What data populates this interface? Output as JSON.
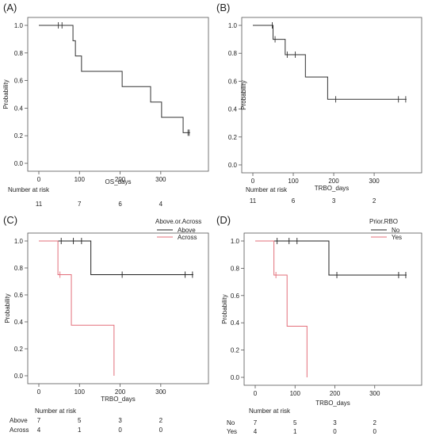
{
  "chart_data": [
    {
      "panel": "(A)",
      "type": "line",
      "step": "survival",
      "xlabel": "OS_days",
      "ylabel": "Probability",
      "xlim": [
        0,
        390
      ],
      "ylim": [
        0,
        1
      ],
      "xticks": [
        0,
        100,
        200,
        300
      ],
      "yticks": [
        0.0,
        0.2,
        0.4,
        0.6,
        0.8,
        1.0
      ],
      "tick_labels_y": [
        "0.0",
        "0.2",
        "0.4",
        "0.6",
        "0.8",
        "1.0"
      ],
      "legend_title": "",
      "series": [
        {
          "name": "",
          "color": "#333333",
          "steps": [
            [
              0,
              1.0
            ],
            [
              84,
              0.889
            ],
            [
              90,
              0.778
            ],
            [
              105,
              0.667
            ],
            [
              205,
              0.556
            ],
            [
              275,
              0.444
            ],
            [
              302,
              0.333
            ],
            [
              355,
              0.222
            ],
            [
              372,
              0.222
            ]
          ],
          "censored": [
            [
              48,
              1.0
            ],
            [
              57,
              1.0
            ],
            [
              367,
              0.222
            ],
            [
              370,
              0.222
            ]
          ]
        }
      ],
      "risk_table": {
        "title": "Number at risk",
        "times": [
          0,
          100,
          200,
          300
        ],
        "rows": [
          {
            "label": "",
            "values": [
              "11",
              "7",
              "6",
              "4"
            ]
          }
        ]
      }
    },
    {
      "panel": "(B)",
      "type": "line",
      "step": "survival",
      "xlabel": "TRBO_days",
      "ylabel": "Probability",
      "xlim": [
        0,
        390
      ],
      "ylim": [
        0,
        1
      ],
      "xticks": [
        0,
        100,
        200,
        300
      ],
      "yticks": [
        0.0,
        0.2,
        0.4,
        0.6,
        0.8,
        1.0
      ],
      "tick_labels_y": [
        "0.0",
        "0.2",
        "0.4",
        "0.6",
        "0.8",
        "1.0"
      ],
      "legend_title": "",
      "series": [
        {
          "name": "",
          "color": "#333333",
          "steps": [
            [
              0,
              1.0
            ],
            [
              50,
              0.9
            ],
            [
              80,
              0.79
            ],
            [
              130,
              0.63
            ],
            [
              185,
              0.47
            ],
            [
              380,
              0.47
            ]
          ],
          "censored": [
            [
              48,
              1.0
            ],
            [
              55,
              0.9
            ],
            [
              85,
              0.79
            ],
            [
              105,
              0.79
            ],
            [
              205,
              0.47
            ],
            [
              360,
              0.47
            ],
            [
              378,
              0.47
            ]
          ]
        }
      ],
      "risk_table": {
        "title": "Number at risk",
        "times": [
          0,
          100,
          200,
          300
        ],
        "rows": [
          {
            "label": "",
            "values": [
              "11",
              "6",
              "3",
              "2"
            ]
          }
        ]
      }
    },
    {
      "panel": "(C)",
      "type": "line",
      "step": "survival",
      "xlabel": "TRBO_days",
      "ylabel": "Probability",
      "xlim": [
        0,
        390
      ],
      "ylim": [
        0,
        1
      ],
      "xticks": [
        0,
        100,
        200,
        300
      ],
      "yticks": [
        0.0,
        0.2,
        0.4,
        0.6,
        0.8,
        1.0
      ],
      "tick_labels_y": [
        "0.0",
        "0.2",
        "0.4",
        "0.6",
        "0.8",
        "1.0"
      ],
      "legend_title": "Above.or.Across",
      "series": [
        {
          "name": "Above",
          "color": "#222222",
          "steps": [
            [
              0,
              1.0
            ],
            [
              128,
              0.75
            ],
            [
              380,
              0.75
            ]
          ],
          "censored": [
            [
              55,
              1.0
            ],
            [
              85,
              1.0
            ],
            [
              105,
              1.0
            ],
            [
              205,
              0.75
            ],
            [
              360,
              0.75
            ],
            [
              378,
              0.75
            ]
          ]
        },
        {
          "name": "Across",
          "color": "#e36f7a",
          "steps": [
            [
              0,
              1.0
            ],
            [
              47,
              0.75
            ],
            [
              80,
              0.375
            ],
            [
              185,
              0.0
            ]
          ],
          "censored": [
            [
              52,
              0.75
            ]
          ]
        }
      ],
      "risk_table": {
        "title": "Number at risk",
        "times": [
          0,
          100,
          200,
          300
        ],
        "rows": [
          {
            "label": "Above",
            "values": [
              "7",
              "5",
              "3",
              "2"
            ]
          },
          {
            "label": "Across",
            "values": [
              "4",
              "1",
              "0",
              "0"
            ]
          }
        ]
      }
    },
    {
      "panel": "(D)",
      "type": "line",
      "step": "survival",
      "xlabel": "TRBO_days",
      "ylabel": "Probability",
      "xlim": [
        0,
        390
      ],
      "ylim": [
        0,
        1
      ],
      "xticks": [
        0,
        100,
        200,
        300
      ],
      "yticks": [
        0.0,
        0.2,
        0.4,
        0.6,
        0.8,
        1.0
      ],
      "tick_labels_y": [
        "0.0",
        "0.2",
        "0.4",
        "0.6",
        "0.8",
        "1.0"
      ],
      "legend_title": "Prior.RBO",
      "series": [
        {
          "name": "No",
          "color": "#222222",
          "steps": [
            [
              0,
              1.0
            ],
            [
              185,
              0.75
            ],
            [
              380,
              0.75
            ]
          ],
          "censored": [
            [
              55,
              1.0
            ],
            [
              85,
              1.0
            ],
            [
              105,
              1.0
            ],
            [
              205,
              0.75
            ],
            [
              360,
              0.75
            ],
            [
              378,
              0.75
            ]
          ]
        },
        {
          "name": "Yes",
          "color": "#e36f7a",
          "steps": [
            [
              0,
              1.0
            ],
            [
              47,
              0.75
            ],
            [
              80,
              0.375
            ],
            [
              130,
              0.0
            ]
          ],
          "censored": [
            [
              52,
              0.75
            ]
          ]
        }
      ],
      "risk_table": {
        "title": "Number at risk",
        "times": [
          0,
          100,
          200,
          300
        ],
        "rows": [
          {
            "label": "No",
            "values": [
              "7",
              "5",
              "3",
              "2"
            ]
          },
          {
            "label": "Yes",
            "values": [
              "4",
              "1",
              "0",
              "0"
            ]
          }
        ]
      }
    }
  ]
}
